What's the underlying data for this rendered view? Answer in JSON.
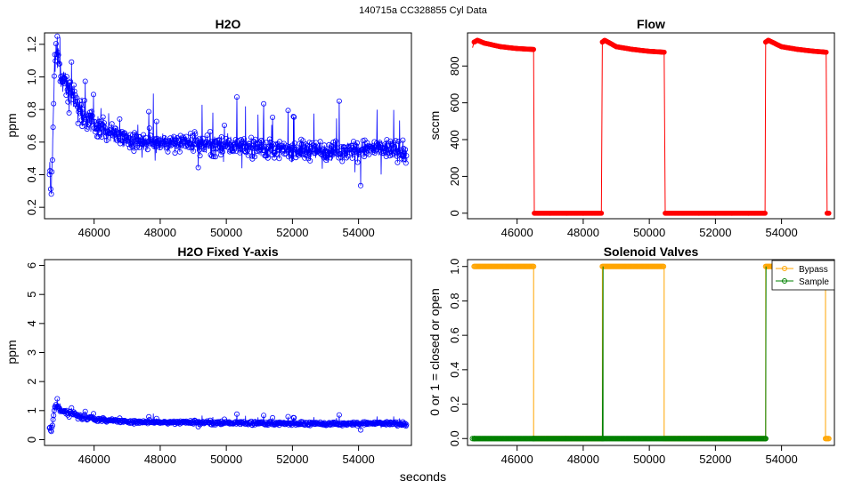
{
  "figure": {
    "supertitle": "140715a    CC328855   Cyl Data",
    "xlabel": "seconds"
  },
  "chart_data": [
    {
      "id": "h2o",
      "type": "line",
      "title": "H2O",
      "ylabel": "ppm",
      "xlabel": "",
      "xlim": [
        44500,
        55600
      ],
      "ylim": [
        0.13,
        1.27
      ],
      "xticks": [
        46000,
        48000,
        50000,
        52000,
        54000
      ],
      "yticks": [
        0.2,
        0.4,
        0.6,
        0.8,
        1.0,
        1.2
      ],
      "ytick_labels": [
        "0.2",
        "0.4",
        "0.6",
        "0.8",
        "1.0",
        "1.2"
      ],
      "series": [
        {
          "color": "#0000ff",
          "markers": "circle-open",
          "x": [
            44650,
            44700,
            44750,
            44800,
            44850,
            44900,
            44950,
            45000,
            45100,
            45200,
            45300,
            45400,
            45500,
            45700,
            45900,
            46100,
            46300,
            46500,
            46800,
            47100,
            47400,
            47700,
            48000,
            48400,
            48800,
            49200,
            49600,
            50000,
            50400,
            50800,
            51200,
            51600,
            52000,
            52400,
            52800,
            53200,
            53600,
            54000,
            54400,
            54800,
            55200,
            55450
          ],
          "y": [
            0.45,
            0.3,
            0.6,
            1.05,
            1.15,
            1.1,
            1.05,
            1.0,
            0.98,
            0.95,
            0.92,
            0.88,
            0.82,
            0.76,
            0.72,
            0.7,
            0.68,
            0.66,
            0.64,
            0.62,
            0.61,
            0.6,
            0.6,
            0.6,
            0.59,
            0.59,
            0.58,
            0.58,
            0.58,
            0.57,
            0.56,
            0.55,
            0.55,
            0.55,
            0.55,
            0.55,
            0.55,
            0.55,
            0.56,
            0.56,
            0.55,
            0.52
          ]
        }
      ]
    },
    {
      "id": "flow",
      "type": "line",
      "title": "Flow",
      "ylabel": "sccm",
      "xlabel": "",
      "xlim": [
        44500,
        55600
      ],
      "ylim": [
        -30,
        980
      ],
      "xticks": [
        46000,
        48000,
        50000,
        52000,
        54000
      ],
      "yticks": [
        0,
        200,
        400,
        600,
        800
      ],
      "ytick_labels": [
        "0",
        "200",
        "400",
        "600",
        "800"
      ],
      "series": [
        {
          "color": "#ff0000",
          "markers": "circle-filled",
          "x": [
            44650,
            44700,
            44800,
            45000,
            45500,
            46000,
            46500,
            46520,
            47000,
            47500,
            48000,
            48550,
            48580,
            48650,
            48800,
            49000,
            49500,
            50000,
            50450,
            50480,
            51000,
            51500,
            52000,
            52500,
            53000,
            53500,
            53520,
            53600,
            54000,
            54500,
            55000,
            55350,
            55380,
            55450
          ],
          "y": [
            900,
            930,
            940,
            925,
            905,
            895,
            890,
            0,
            0,
            0,
            0,
            0,
            930,
            940,
            925,
            905,
            890,
            880,
            875,
            0,
            0,
            0,
            0,
            0,
            0,
            0,
            930,
            940,
            905,
            890,
            880,
            875,
            0,
            0
          ]
        }
      ]
    },
    {
      "id": "h2o-fixed",
      "type": "line",
      "title": "H2O Fixed Y-axis",
      "ylabel": "ppm",
      "xlabel": "",
      "xlim": [
        44500,
        55600
      ],
      "ylim": [
        -0.2,
        6.2
      ],
      "xticks": [
        46000,
        48000,
        50000,
        52000,
        54000
      ],
      "yticks": [
        0,
        1,
        2,
        3,
        4,
        5,
        6
      ],
      "ytick_labels": [
        "0",
        "1",
        "2",
        "3",
        "4",
        "5",
        "6"
      ],
      "series": [
        {
          "color": "#0000ff",
          "markers": "circle-open",
          "x": [
            44650,
            44700,
            44750,
            44800,
            44850,
            44900,
            44950,
            45000,
            45100,
            45200,
            45300,
            45400,
            45500,
            45700,
            45900,
            46100,
            46300,
            46500,
            46800,
            47100,
            47400,
            47700,
            48000,
            48400,
            48800,
            49200,
            49600,
            50000,
            50400,
            50800,
            51200,
            51600,
            52000,
            52400,
            52800,
            53200,
            53600,
            54000,
            54400,
            54800,
            55200,
            55450
          ],
          "y": [
            0.45,
            0.3,
            0.6,
            1.05,
            1.15,
            1.1,
            1.05,
            1.0,
            0.98,
            0.95,
            0.92,
            0.88,
            0.82,
            0.76,
            0.72,
            0.7,
            0.68,
            0.66,
            0.64,
            0.62,
            0.61,
            0.6,
            0.6,
            0.6,
            0.59,
            0.59,
            0.58,
            0.58,
            0.58,
            0.57,
            0.56,
            0.55,
            0.55,
            0.55,
            0.55,
            0.55,
            0.55,
            0.55,
            0.56,
            0.56,
            0.55,
            0.52
          ]
        }
      ]
    },
    {
      "id": "solenoid",
      "type": "line",
      "title": "Solenoid Valves",
      "ylabel": "0 or 1 = closed or open",
      "xlabel": "",
      "xlim": [
        44500,
        55600
      ],
      "ylim": [
        -0.04,
        1.04
      ],
      "xticks": [
        46000,
        48000,
        50000,
        52000,
        54000
      ],
      "yticks": [
        0.0,
        0.2,
        0.4,
        0.6,
        0.8,
        1.0
      ],
      "ytick_labels": [
        "0.0",
        "0.2",
        "0.4",
        "0.6",
        "0.8",
        "1.0"
      ],
      "legend": "top-right",
      "series": [
        {
          "name": "Bypass",
          "color": "#ffa500",
          "markers": "circle-open",
          "x": [
            44700,
            46500,
            46500,
            48580,
            48580,
            50450,
            50450,
            53520,
            53520,
            55330,
            55330,
            55450
          ],
          "y": [
            1,
            1,
            0,
            0,
            1,
            1,
            0,
            0,
            1,
            1,
            0,
            0
          ]
        },
        {
          "name": "Sample",
          "color": "#008000",
          "markers": "circle-open",
          "x": [
            44650,
            44700,
            44700,
            46500,
            46500,
            48580,
            48580,
            48600,
            48600,
            53520,
            53520,
            53530
          ],
          "y": [
            0,
            0,
            0,
            0,
            0,
            0,
            0,
            1,
            0,
            0,
            0,
            1
          ]
        }
      ]
    }
  ]
}
